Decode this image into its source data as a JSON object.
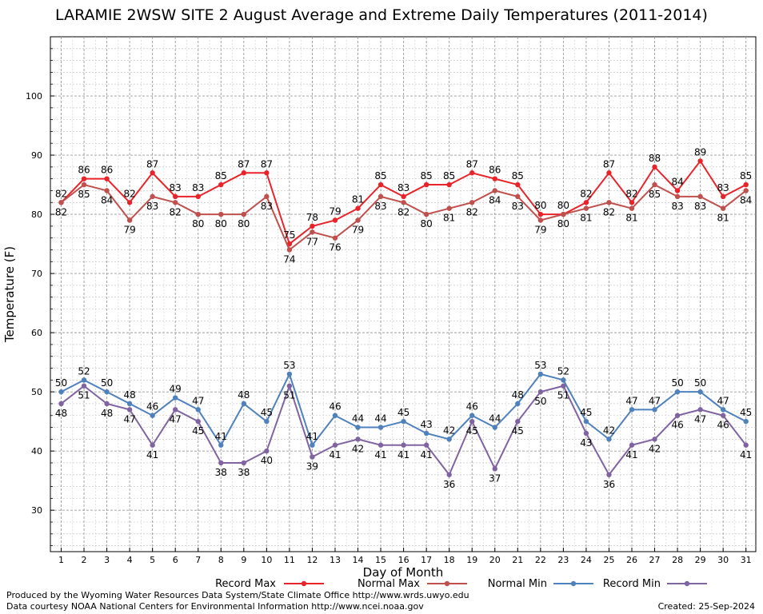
{
  "chart_data": {
    "type": "line",
    "title": "LARAMIE 2WSW SITE 2 August Average and Extreme Daily Temperatures (2011-2014)",
    "xlabel": "Day of Month",
    "ylabel": "Temperature (F)",
    "ylim": [
      23,
      110
    ],
    "yticks": [
      30,
      40,
      50,
      60,
      70,
      80,
      90,
      100
    ],
    "categories": [
      "1",
      "2",
      "3",
      "4",
      "5",
      "6",
      "7",
      "8",
      "9",
      "10",
      "11",
      "12",
      "13",
      "14",
      "15",
      "16",
      "17",
      "18",
      "19",
      "20",
      "21",
      "22",
      "23",
      "24",
      "25",
      "26",
      "27",
      "28",
      "29",
      "30",
      "31"
    ],
    "grid": true,
    "legend_position": "bottom",
    "series": [
      {
        "name": "Record Max",
        "color": "#e8242a",
        "values": [
          82,
          86,
          86,
          82,
          87,
          83,
          83,
          85,
          87,
          87,
          75,
          78,
          79,
          81,
          85,
          83,
          85,
          85,
          87,
          86,
          85,
          80,
          80,
          82,
          87,
          82,
          88,
          84,
          89,
          83,
          85
        ]
      },
      {
        "name": "Normal Max",
        "color": "#c0504d",
        "values": [
          82,
          85,
          84,
          79,
          83,
          82,
          80,
          80,
          80,
          83,
          74,
          77,
          76,
          79,
          83,
          82,
          80,
          81,
          82,
          84,
          83,
          79,
          80,
          81,
          82,
          81,
          85,
          83,
          83,
          81,
          84
        ]
      },
      {
        "name": "Normal Min",
        "color": "#4f81bd",
        "values": [
          50,
          52,
          50,
          48,
          46,
          49,
          47,
          41,
          48,
          45,
          53,
          41,
          46,
          44,
          44,
          45,
          43,
          42,
          46,
          44,
          48,
          53,
          52,
          45,
          42,
          47,
          47,
          50,
          50,
          47,
          45
        ]
      },
      {
        "name": "Record Min",
        "color": "#8064a2",
        "values": [
          48,
          51,
          48,
          47,
          41,
          47,
          45,
          38,
          38,
          40,
          51,
          39,
          41,
          42,
          41,
          41,
          41,
          36,
          45,
          37,
          45,
          50,
          51,
          43,
          36,
          41,
          42,
          46,
          47,
          46,
          41
        ]
      }
    ]
  },
  "footer": {
    "produced_by": "Produced by the Wyoming Water Resources Data System/State Climate Office http://www.wrds.uwyo.edu",
    "courtesy": "Data courtesy NOAA National Centers for Environmental Information http://www.ncei.noaa.gov",
    "created": "Created:  25-Sep-2024"
  }
}
